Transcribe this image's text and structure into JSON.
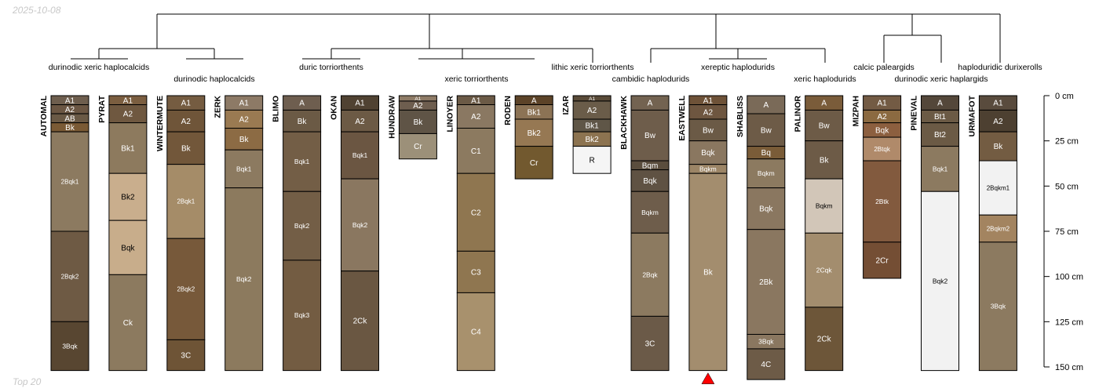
{
  "header": {
    "date": "2025-10-08"
  },
  "footer": {
    "label": "Top 20"
  },
  "depth_axis": {
    "max_cm": 150,
    "ticks": [
      0,
      25,
      50,
      75,
      100,
      125,
      150
    ],
    "unit": "cm",
    "tick_labels": [
      "0 cm",
      "25 cm",
      "50 cm",
      "75 cm",
      "100 cm",
      "125 cm",
      "150 cm"
    ]
  },
  "taxa_labels": [
    "durinodic xeric haplocalcids",
    "durinodic haplocalcids",
    "duric torriorthents",
    "xeric torriorthents",
    "lithic xeric torriorthents",
    "cambidic haplodurids",
    "xereptic haplodurids",
    "xeric haplodurids",
    "calcic paleargids",
    "durinodic xeric haplargids",
    "haploduridic durixerolls"
  ],
  "marker": {
    "profile": "EASTWELL",
    "color": "#ff0000",
    "meaning": "profile extends beyond depth"
  },
  "profiles": [
    {
      "name": "AUTOMAL",
      "horizons": [
        [
          "A1",
          0,
          5,
          "#6e5e4e"
        ],
        [
          "A2",
          5,
          10,
          "#6b5643"
        ],
        [
          "AB",
          10,
          15,
          "#6a5945"
        ],
        [
          "Bk",
          15,
          20,
          "#7a5a35"
        ],
        [
          "2Bqk1",
          20,
          75,
          "#8c7a60"
        ],
        [
          "2Bqk2",
          75,
          125,
          "#6e5a44"
        ],
        [
          "3Bqk",
          125,
          152,
          "#584631"
        ]
      ]
    },
    {
      "name": "PYRAT",
      "horizons": [
        [
          "A1",
          0,
          5,
          "#7b5e40"
        ],
        [
          "A2",
          5,
          15,
          "#6f5840"
        ],
        [
          "Bk1",
          15,
          43,
          "#8d7a5e"
        ],
        [
          "Bk2",
          43,
          69,
          "#c9ae8d"
        ],
        [
          "Bqk",
          69,
          99,
          "#c8ad8b"
        ],
        [
          "Ck",
          99,
          152,
          "#8c7a5f"
        ]
      ]
    },
    {
      "name": "WINTERMUTE",
      "horizons": [
        [
          "A1",
          0,
          8,
          "#755c41"
        ],
        [
          "A2",
          8,
          20,
          "#6f5539"
        ],
        [
          "Bk",
          20,
          38,
          "#72573a"
        ],
        [
          "2Bqk1",
          38,
          79,
          "#a58c68"
        ],
        [
          "2Bqk2",
          79,
          135,
          "#77593a"
        ],
        [
          "3C",
          135,
          152,
          "#6e5436"
        ]
      ]
    },
    {
      "name": "ZERK",
      "horizons": [
        [
          "A1",
          0,
          8,
          "#8d7a66"
        ],
        [
          "A2",
          8,
          18,
          "#9a7a52"
        ],
        [
          "Bk",
          18,
          30,
          "#8c6b44"
        ],
        [
          "Bqk1",
          30,
          51,
          "#8c7a60"
        ],
        [
          "Bqk2",
          51,
          152,
          "#8c7a5e"
        ]
      ]
    },
    {
      "name": "BLIMO",
      "horizons": [
        [
          "A",
          0,
          8,
          "#6e5e4f"
        ],
        [
          "Bk",
          8,
          20,
          "#6b5a45"
        ],
        [
          "Bqk1",
          20,
          53,
          "#735e46"
        ],
        [
          "Bqk2",
          53,
          91,
          "#735e46"
        ],
        [
          "Bqk3",
          91,
          152,
          "#735c42"
        ]
      ]
    },
    {
      "name": "OKAN",
      "horizons": [
        [
          "A1",
          0,
          8,
          "#504232"
        ],
        [
          "A2",
          8,
          20,
          "#6c5a45"
        ],
        [
          "Bqk1",
          20,
          46,
          "#6b5642"
        ],
        [
          "Bqk2",
          46,
          97,
          "#8a7760"
        ],
        [
          "2Ck",
          97,
          152,
          "#6a5742"
        ]
      ]
    },
    {
      "name": "HUNDRAW",
      "horizons": [
        [
          "A1",
          0,
          3,
          "#8e7b66"
        ],
        [
          "A2",
          3,
          8,
          "#6e5e4f"
        ],
        [
          "Bk",
          8,
          21,
          "#5f5446"
        ],
        [
          "Cr",
          21,
          35,
          "#9c9079"
        ]
      ]
    },
    {
      "name": "LINOYER",
      "horizons": [
        [
          "A1",
          0,
          5,
          "#6b5a46"
        ],
        [
          "A2",
          5,
          18,
          "#8a7862"
        ],
        [
          "C1",
          18,
          43,
          "#8c7a60"
        ],
        [
          "C2",
          43,
          86,
          "#8f7650"
        ],
        [
          "C3",
          86,
          109,
          "#8f7650"
        ],
        [
          "C4",
          109,
          152,
          "#a8916d"
        ]
      ]
    },
    {
      "name": "RODEN",
      "horizons": [
        [
          "A",
          0,
          5,
          "#5c4328"
        ],
        [
          "Bk1",
          5,
          13,
          "#8c7355"
        ],
        [
          "Bk2",
          13,
          28,
          "#967853"
        ],
        [
          "Cr",
          28,
          46,
          "#72592f"
        ]
      ]
    },
    {
      "name": "IZAR",
      "horizons": [
        [
          "A1",
          0,
          3,
          "#594a38"
        ],
        [
          "A2",
          3,
          13,
          "#6a5c49"
        ],
        [
          "Bk1",
          13,
          20,
          "#5f5647"
        ],
        [
          "Bk2",
          20,
          28,
          "#8c7350"
        ],
        [
          "R",
          28,
          43,
          "#f5f5f5"
        ]
      ]
    },
    {
      "name": "BLACKHAWK",
      "horizons": [
        [
          "A",
          0,
          8,
          "#736351"
        ],
        [
          "Bw",
          8,
          36,
          "#6e5d4b"
        ],
        [
          "Bqm",
          36,
          41,
          "#5a4d3d"
        ],
        [
          "Bqk",
          41,
          53,
          "#5f5243"
        ],
        [
          "Bqkm",
          53,
          76,
          "#6e5d4b"
        ],
        [
          "2Bqk",
          76,
          122,
          "#8c7a60"
        ],
        [
          "3C",
          122,
          152,
          "#6b5a48"
        ]
      ]
    },
    {
      "name": "EASTWELL",
      "horizons": [
        [
          "A1",
          0,
          5,
          "#6e5238"
        ],
        [
          "A2",
          5,
          13,
          "#6e5640"
        ],
        [
          "Bw",
          13,
          25,
          "#6b5a46"
        ],
        [
          "Bqk",
          25,
          38,
          "#8a7760"
        ],
        [
          "Bqkm",
          38,
          43,
          "#9c8566"
        ],
        [
          "Bk",
          43,
          152,
          "#a38d6e"
        ]
      ]
    },
    {
      "name": "SHABLISS",
      "horizons": [
        [
          "A",
          0,
          10,
          "#7a6a58"
        ],
        [
          "Bw",
          10,
          28,
          "#6d5b47"
        ],
        [
          "Bq",
          28,
          35,
          "#7a5c38"
        ],
        [
          "Bqkm",
          35,
          51,
          "#8c7a60"
        ],
        [
          "Bqk",
          51,
          74,
          "#8a7760"
        ],
        [
          "2Bk",
          74,
          132,
          "#8a7760"
        ],
        [
          "3Bqk",
          132,
          140,
          "#8a7760"
        ],
        [
          "4C",
          140,
          157,
          "#6d5b47"
        ]
      ]
    },
    {
      "name": "PALINOR",
      "horizons": [
        [
          "A",
          0,
          8,
          "#7a5c3a"
        ],
        [
          "Bw",
          8,
          25,
          "#6d5b47"
        ],
        [
          "Bk",
          25,
          46,
          "#6d5b47"
        ],
        [
          "Bqkm",
          46,
          76,
          "#d2c6b8"
        ],
        [
          "2Cqk",
          76,
          117,
          "#a38d6e"
        ],
        [
          "2Ck",
          117,
          152,
          "#6d5639"
        ]
      ]
    },
    {
      "name": "MIZPAH",
      "horizons": [
        [
          "A1",
          0,
          8,
          "#735b44"
        ],
        [
          "A2",
          8,
          15,
          "#8b6a41"
        ],
        [
          "Bqk",
          15,
          23,
          "#8c5f3f"
        ],
        [
          "2Btqk",
          23,
          36,
          "#b08a6a"
        ],
        [
          "2Btk",
          36,
          81,
          "#825a3e"
        ],
        [
          "2Cr",
          81,
          101,
          "#744e34"
        ]
      ]
    },
    {
      "name": "PINEVAL",
      "horizons": [
        [
          "A",
          0,
          8,
          "#54473a"
        ],
        [
          "Bt1",
          8,
          15,
          "#6b5a45"
        ],
        [
          "Bt2",
          15,
          28,
          "#6b5a45"
        ],
        [
          "Bqk1",
          28,
          53,
          "#8c7a60"
        ],
        [
          "Bqk2",
          53,
          152,
          "#f2f2f2"
        ]
      ]
    },
    {
      "name": "URMAFOT",
      "horizons": [
        [
          "A1",
          0,
          8,
          "#594b3d"
        ],
        [
          "A2",
          8,
          20,
          "#4d4031"
        ],
        [
          "Bk",
          20,
          36,
          "#735c42"
        ],
        [
          "2Bqkm1",
          36,
          66,
          "#f2f2f2"
        ],
        [
          "2Bqkm2",
          66,
          81,
          "#a38460"
        ],
        [
          "3Bqk",
          81,
          152,
          "#8c7a60"
        ]
      ]
    }
  ]
}
